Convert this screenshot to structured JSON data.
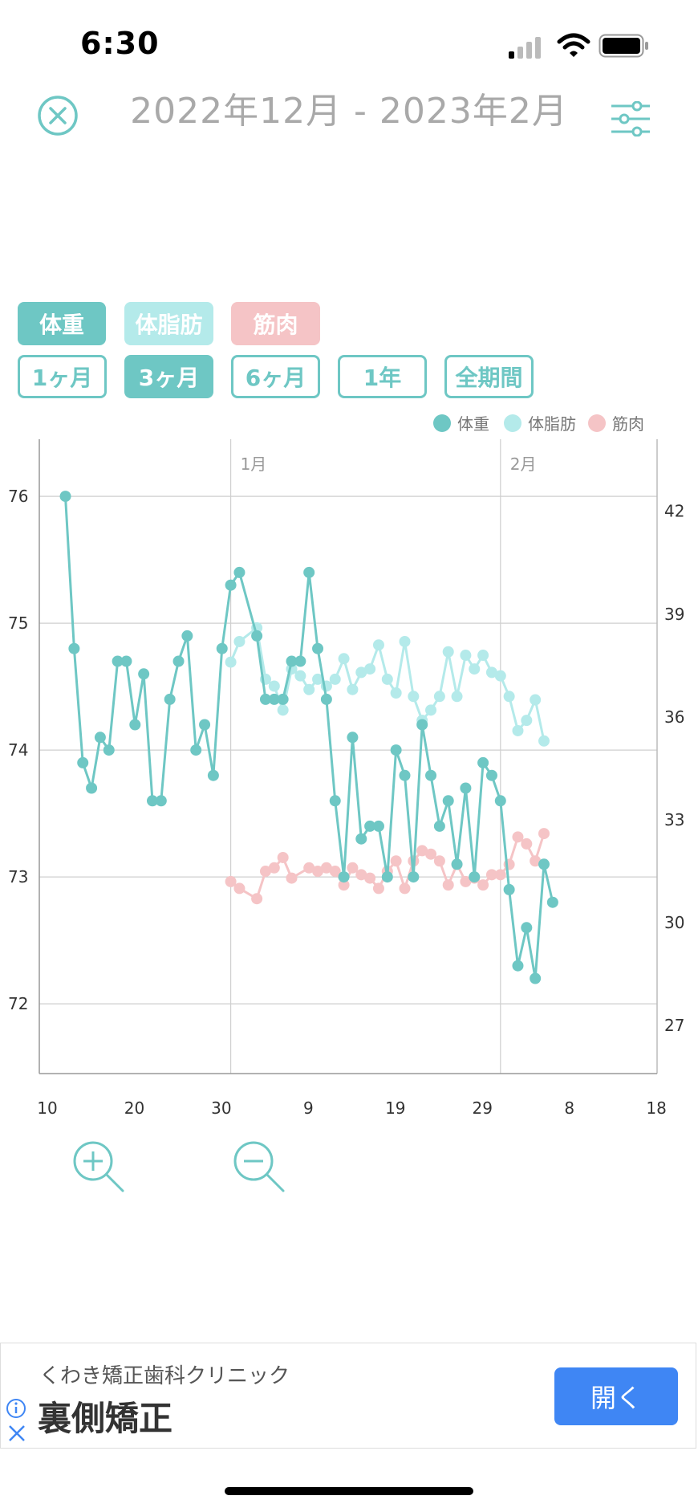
{
  "status_bar": {
    "time": "6:30"
  },
  "header": {
    "title": "2022年12月 - 2023年2月"
  },
  "metric_chips": [
    {
      "label": "体重",
      "selected": true,
      "color": "#6ec7c4"
    },
    {
      "label": "体脂肪",
      "selected": false,
      "color": "#b4eaea"
    },
    {
      "label": "筋肉",
      "selected": false,
      "color": "#f5c4c6"
    }
  ],
  "period_chips": [
    {
      "label": "1ヶ月",
      "selected": false
    },
    {
      "label": "3ヶ月",
      "selected": true
    },
    {
      "label": "6ヶ月",
      "selected": false
    },
    {
      "label": "1年",
      "selected": false
    },
    {
      "label": "全期間",
      "selected": false
    }
  ],
  "chart_data": {
    "type": "line",
    "legend_position": "top-right",
    "grid": true,
    "x_tick_labels": [
      "10",
      "20",
      "30",
      "9",
      "19",
      "29",
      "8",
      "18"
    ],
    "month_labels": [
      {
        "label": "1月",
        "day": 22
      },
      {
        "label": "2月",
        "day": 53
      }
    ],
    "x_range": [
      0,
      71
    ],
    "x_ticks_days": [
      0,
      10,
      20,
      30,
      40,
      50,
      60,
      70
    ],
    "y_left": {
      "range": [
        71.45,
        76.45
      ],
      "ticks": [
        72,
        73,
        74,
        75,
        76
      ]
    },
    "y_right": {
      "range": [
        25.6,
        44.1
      ],
      "ticks": [
        27,
        30,
        33,
        36,
        39,
        42
      ]
    },
    "series": [
      {
        "name": "体重",
        "axis": "left",
        "color": "#6ec7c4",
        "points": [
          [
            3,
            76.0
          ],
          [
            4,
            74.8
          ],
          [
            5,
            73.9
          ],
          [
            6,
            73.7
          ],
          [
            7,
            74.1
          ],
          [
            8,
            74.0
          ],
          [
            9,
            74.7
          ],
          [
            10,
            74.7
          ],
          [
            11,
            74.2
          ],
          [
            12,
            74.6
          ],
          [
            13,
            73.6
          ],
          [
            14,
            73.6
          ],
          [
            15,
            74.4
          ],
          [
            16,
            74.7
          ],
          [
            17,
            74.9
          ],
          [
            18,
            74.0
          ],
          [
            19,
            74.2
          ],
          [
            20,
            73.8
          ],
          [
            21,
            74.8
          ],
          [
            22,
            75.3
          ],
          [
            23,
            75.4
          ],
          [
            25,
            74.9
          ],
          [
            26,
            74.4
          ],
          [
            27,
            74.4
          ],
          [
            28,
            74.4
          ],
          [
            29,
            74.7
          ],
          [
            30,
            74.7
          ],
          [
            31,
            75.4
          ],
          [
            32,
            74.8
          ],
          [
            33,
            74.4
          ],
          [
            34,
            73.6
          ],
          [
            35,
            73.0
          ],
          [
            36,
            74.1
          ],
          [
            37,
            73.3
          ],
          [
            38,
            73.4
          ],
          [
            39,
            73.4
          ],
          [
            40,
            73.0
          ],
          [
            41,
            74.0
          ],
          [
            42,
            73.8
          ],
          [
            43,
            73.0
          ],
          [
            44,
            74.2
          ],
          [
            45,
            73.8
          ],
          [
            46,
            73.4
          ],
          [
            47,
            73.6
          ],
          [
            48,
            73.1
          ],
          [
            49,
            73.7
          ],
          [
            50,
            73.0
          ],
          [
            51,
            73.9
          ],
          [
            52,
            73.8
          ],
          [
            53,
            73.6
          ],
          [
            54,
            72.9
          ],
          [
            55,
            72.3
          ],
          [
            56,
            72.6
          ],
          [
            57,
            72.2
          ],
          [
            58,
            73.1
          ],
          [
            59,
            72.8
          ]
        ]
      },
      {
        "name": "体脂肪",
        "axis": "right",
        "color": "#b4eaea",
        "points": [
          [
            22,
            37.6
          ],
          [
            23,
            38.2
          ],
          [
            25,
            38.6
          ],
          [
            26,
            37.1
          ],
          [
            27,
            36.9
          ],
          [
            28,
            36.2
          ],
          [
            29,
            37.4
          ],
          [
            30,
            37.2
          ],
          [
            31,
            36.8
          ],
          [
            32,
            37.1
          ],
          [
            33,
            36.9
          ],
          [
            34,
            37.1
          ],
          [
            35,
            37.7
          ],
          [
            36,
            36.8
          ],
          [
            37,
            37.3
          ],
          [
            38,
            37.4
          ],
          [
            39,
            38.1
          ],
          [
            40,
            37.1
          ],
          [
            41,
            36.7
          ],
          [
            42,
            38.2
          ],
          [
            43,
            36.6
          ],
          [
            44,
            35.9
          ],
          [
            45,
            36.2
          ],
          [
            46,
            36.6
          ],
          [
            47,
            37.9
          ],
          [
            48,
            36.6
          ],
          [
            49,
            37.8
          ],
          [
            50,
            37.4
          ],
          [
            51,
            37.8
          ],
          [
            52,
            37.3
          ],
          [
            53,
            37.2
          ],
          [
            54,
            36.6
          ],
          [
            55,
            35.6
          ],
          [
            56,
            35.9
          ],
          [
            57,
            36.5
          ],
          [
            58,
            35.3
          ]
        ]
      },
      {
        "name": "筋肉",
        "axis": "right",
        "color": "#f5c4c6",
        "points": [
          [
            22,
            31.2
          ],
          [
            23,
            31.0
          ],
          [
            25,
            30.7
          ],
          [
            26,
            31.5
          ],
          [
            27,
            31.6
          ],
          [
            28,
            31.9
          ],
          [
            29,
            31.3
          ],
          [
            31,
            31.6
          ],
          [
            32,
            31.5
          ],
          [
            33,
            31.6
          ],
          [
            34,
            31.5
          ],
          [
            35,
            31.1
          ],
          [
            36,
            31.6
          ],
          [
            37,
            31.4
          ],
          [
            38,
            31.3
          ],
          [
            39,
            31.0
          ],
          [
            40,
            31.5
          ],
          [
            41,
            31.8
          ],
          [
            42,
            31.0
          ],
          [
            43,
            31.8
          ],
          [
            44,
            32.1
          ],
          [
            45,
            32.0
          ],
          [
            46,
            31.8
          ],
          [
            47,
            31.1
          ],
          [
            48,
            31.7
          ],
          [
            49,
            31.2
          ],
          [
            50,
            31.3
          ],
          [
            51,
            31.1
          ],
          [
            52,
            31.4
          ],
          [
            53,
            31.4
          ],
          [
            54,
            31.7
          ],
          [
            55,
            32.5
          ],
          [
            56,
            32.3
          ],
          [
            57,
            31.8
          ],
          [
            58,
            32.6
          ]
        ]
      }
    ]
  },
  "zoom": {
    "zoom_in_label": "+",
    "zoom_out_label": "−"
  },
  "ad": {
    "advertiser": "くわき矯正歯科クリニック",
    "headline": "裏側矯正",
    "cta": "開く",
    "cta_color": "#3f86f4"
  }
}
